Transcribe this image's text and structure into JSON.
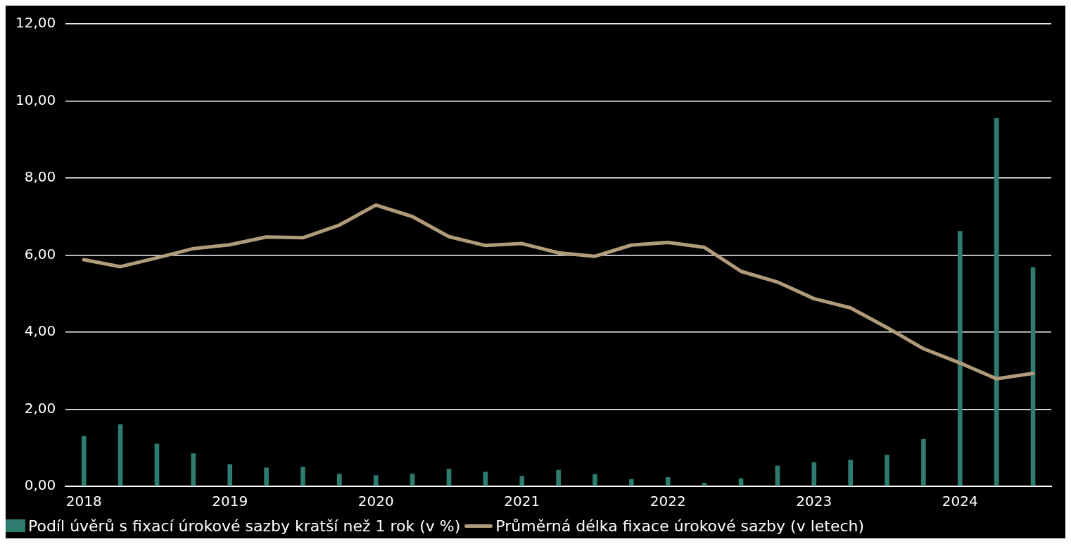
{
  "chart_data": {
    "type": "bar",
    "categories": [
      "2018",
      null,
      null,
      null,
      "2019",
      null,
      null,
      null,
      "2020",
      null,
      null,
      null,
      "2021",
      null,
      null,
      null,
      "2022",
      null,
      null,
      null,
      "2023",
      null,
      null,
      null,
      "2024",
      null,
      null
    ],
    "series": [
      {
        "name": "Podíl úvěrů s fixací úrokové sazby kratší než 1 rok (v %)",
        "color": "#2e7b70",
        "values": [
          1.3,
          1.6,
          1.1,
          0.85,
          0.57,
          0.48,
          0.5,
          0.32,
          0.28,
          0.32,
          0.45,
          0.37,
          0.26,
          0.42,
          0.31,
          0.18,
          0.23,
          0.08,
          0.2,
          0.53,
          0.62,
          0.68,
          0.81,
          1.22,
          6.62,
          9.55,
          5.68
        ]
      },
      {
        "name": "Průměrná délka fixace úrokové sazby (v letech)",
        "type": "line",
        "color": "#b09b7a",
        "values": [
          5.88,
          5.7,
          5.93,
          6.17,
          6.27,
          6.47,
          6.45,
          6.78,
          7.3,
          7.0,
          6.48,
          6.25,
          6.3,
          6.06,
          5.97,
          6.26,
          6.33,
          6.2,
          5.58,
          5.3,
          4.87,
          4.63,
          4.12,
          3.57,
          3.2,
          2.79,
          2.93
        ]
      }
    ],
    "ylim": [
      0,
      12
    ],
    "yticks": [
      {
        "value": 0,
        "label": "0,00"
      },
      {
        "value": 2,
        "label": "2,00"
      },
      {
        "value": 4,
        "label": "4,00"
      },
      {
        "value": 6,
        "label": "6,00"
      },
      {
        "value": 8,
        "label": "8,00"
      },
      {
        "value": 10,
        "label": "10,00"
      },
      {
        "value": 12,
        "label": "12,00"
      }
    ],
    "grid": "y",
    "legend": "bottom left",
    "marker": "none",
    "line_style": "solid"
  }
}
